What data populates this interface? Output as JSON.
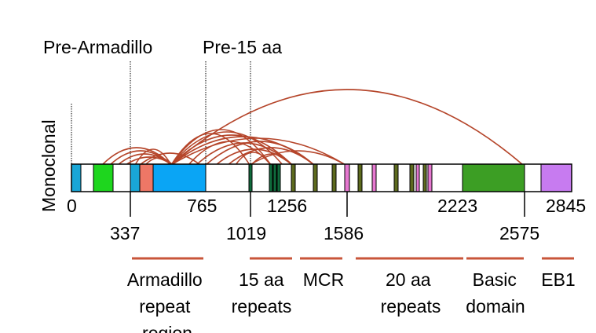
{
  "side_label": "Monoclonal",
  "region_labels": [
    "Pre-Armadillo",
    "Pre-15 aa"
  ],
  "protein_length": 2845,
  "positions_above": [
    "0",
    "765",
    "1256",
    "2223",
    "2845"
  ],
  "positions_below": [
    "337",
    "1019",
    "1586",
    "2575"
  ],
  "domain_labels": [
    {
      "lines": [
        "Armadillo",
        "repeat",
        "region"
      ]
    },
    {
      "lines": [
        "15 aa",
        "repeats"
      ]
    },
    {
      "lines": [
        "MCR"
      ]
    },
    {
      "lines": [
        "20 aa",
        "repeats"
      ]
    },
    {
      "lines": [
        "Basic",
        "domain"
      ]
    },
    {
      "lines": [
        "EB1"
      ]
    }
  ],
  "colors": {
    "arc": "#b5452a",
    "domain_underline": "#c8553a",
    "cyan": "#19a6d6",
    "bright_green": "#1ed61e",
    "salmon": "#ee7766",
    "blue": "#0aa5f5",
    "dark_green": "#0f6b3c",
    "olive": "#5d6a1e",
    "pink": "#e678d0",
    "green": "#3c9e24",
    "purple": "#c77bf0"
  }
}
